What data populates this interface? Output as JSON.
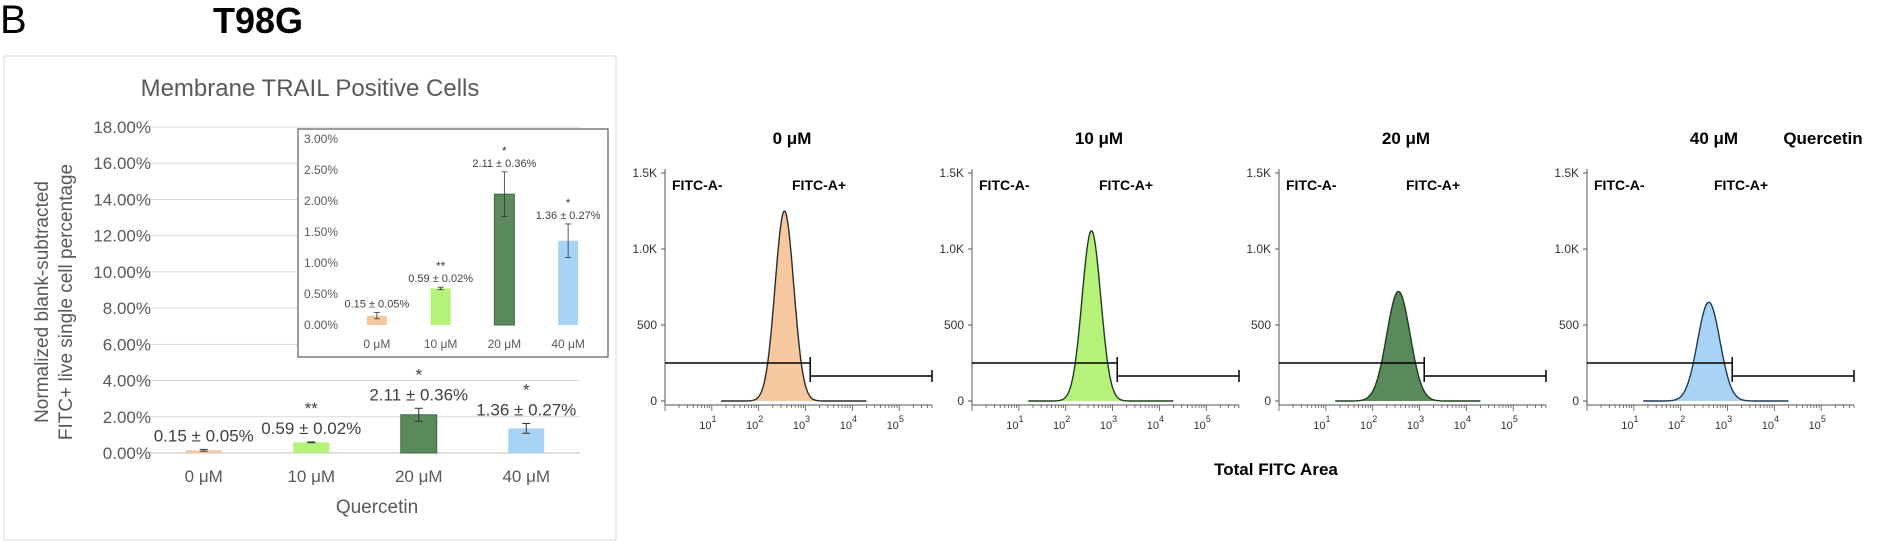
{
  "figure": {
    "panel_letter": "B",
    "cell_line": "T98G",
    "flow_xlabel": "Total FITC Area",
    "treatment_label": "Quercetin",
    "gate_negative": "FITC-A-",
    "gate_positive": "FITC-A+"
  },
  "colors": {
    "orange": "#f7c8a0",
    "lightgreen": "#b6f279",
    "darkgreen": "#5a8a5c",
    "blue": "#a9d3f5",
    "axis": "#595959",
    "grid": "#d9d9d9"
  },
  "chart_data": [
    {
      "type": "bar",
      "title": "Membrane TRAIL Positive Cells",
      "ylabel": [
        "Normalized blank-subtracted",
        "FITC+ live single cell percentage"
      ],
      "xlabel": "Quercetin",
      "categories": [
        "0 μM",
        "10 μM",
        "20 μM",
        "40 μM"
      ],
      "values": [
        0.15,
        0.59,
        2.11,
        1.36
      ],
      "errors": [
        0.05,
        0.02,
        0.36,
        0.27
      ],
      "value_labels": [
        "0.15 ± 0.05%",
        "0.59 ± 0.02%",
        "2.11 ± 0.36%",
        "1.36 ± 0.27%"
      ],
      "significance": [
        "",
        "**",
        "*",
        "*"
      ],
      "ylim": [
        0,
        18
      ],
      "ytick_labels": [
        "0.00%",
        "2.00%",
        "4.00%",
        "6.00%",
        "8.00%",
        "10.00%",
        "12.00%",
        "14.00%",
        "16.00%",
        "18.00%"
      ],
      "grid": true
    },
    {
      "type": "bar",
      "title": "",
      "categories": [
        "0 μM",
        "10 μM",
        "20 μM",
        "40 μM"
      ],
      "values": [
        0.15,
        0.59,
        2.11,
        1.36
      ],
      "errors": [
        0.05,
        0.02,
        0.36,
        0.27
      ],
      "value_labels": [
        "0.15 ± 0.05%",
        "0.59 ± 0.02%",
        "2.11 ± 0.36%",
        "1.36 ± 0.27%"
      ],
      "significance": [
        "",
        "**",
        "*",
        "*"
      ],
      "ylim": [
        0,
        3
      ],
      "ytick_labels": [
        "0.00%",
        "0.50%",
        "1.00%",
        "1.50%",
        "2.00%",
        "2.50%",
        "3.00%"
      ],
      "grid": false
    },
    {
      "type": "area",
      "panels": [
        {
          "title": "0 μM",
          "peak_log": 2.55,
          "sd": 0.2,
          "peak_count": 1250
        },
        {
          "title": "10 μM",
          "peak_log": 2.55,
          "sd": 0.2,
          "peak_count": 1120
        },
        {
          "title": "20 μM",
          "peak_log": 2.55,
          "sd": 0.25,
          "peak_count": 720
        },
        {
          "title": "40 μM",
          "peak_log": 2.6,
          "sd": 0.24,
          "peak_count": 650
        }
      ],
      "y_ticks": [
        "0",
        "500",
        "1.0K",
        "1.5K"
      ],
      "ylim": [
        0,
        1500
      ],
      "x_log_range": [
        0,
        5.7
      ],
      "x_tick_exponents": [
        "1",
        "2",
        "3",
        "4",
        "5"
      ],
      "gate_threshold_log": 3.1
    }
  ]
}
